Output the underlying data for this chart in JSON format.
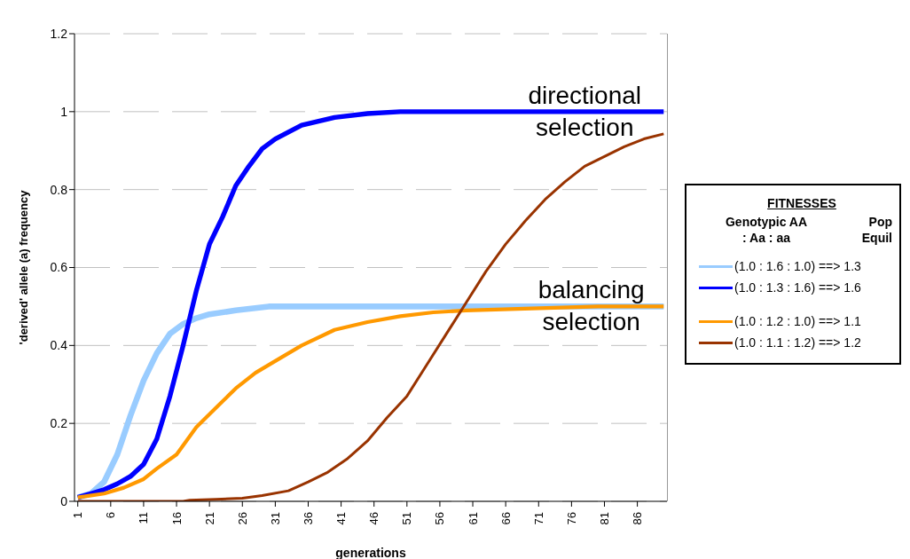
{
  "chart_data": {
    "type": "line",
    "xlabel": "generations",
    "ylabel": "'derived' allele (a) frequency",
    "legend_title": "FITNESSES",
    "xlim": [
      0.5,
      90.5
    ],
    "xticks": [
      1,
      6,
      11,
      16,
      21,
      26,
      31,
      36,
      41,
      46,
      51,
      56,
      61,
      66,
      71,
      76,
      81,
      86
    ],
    "ylim": [
      0,
      1.2
    ],
    "yticks": [
      0,
      0.2,
      0.4,
      0.6,
      0.8,
      1,
      1.2
    ],
    "grid": "y",
    "legend": "right",
    "annotations": [
      {
        "text": "directional selection",
        "x": 78,
        "y": 1.0
      },
      {
        "text": "balancing selection",
        "x": 79,
        "y": 0.5
      },
      "Genotypic AA : Aa : aa",
      "Pop Equil"
    ],
    "series": [
      {
        "name": "(1.0 : 1.6 : 1.0) ==> 1.3",
        "color": "#99ccff",
        "x": [
          1,
          3,
          5,
          7,
          9,
          11,
          13,
          15,
          17,
          19,
          21,
          25,
          30,
          90
        ],
        "values": [
          0.01,
          0.02,
          0.05,
          0.12,
          0.22,
          0.31,
          0.38,
          0.43,
          0.455,
          0.47,
          0.48,
          0.49,
          0.5,
          0.5
        ]
      },
      {
        "name": "(1.0 : 1.3 : 1.6) ==> 1.6",
        "color": "#0000ff",
        "x": [
          1,
          3,
          5,
          7,
          9,
          11,
          13,
          15,
          17,
          19,
          21,
          23,
          25,
          27,
          29,
          31,
          35,
          40,
          45,
          50,
          90
        ],
        "values": [
          0.01,
          0.02,
          0.03,
          0.045,
          0.064,
          0.095,
          0.16,
          0.27,
          0.4,
          0.54,
          0.66,
          0.73,
          0.81,
          0.86,
          0.905,
          0.93,
          0.965,
          0.985,
          0.995,
          1.0,
          1.0
        ]
      },
      {
        "name": "(1.0 : 1.2 : 1.0) ==> 1.1",
        "color": "#ff9900",
        "x": [
          1,
          5,
          8,
          11,
          13,
          16,
          19,
          22,
          25,
          28,
          31,
          35,
          40,
          45,
          50,
          55,
          60,
          70,
          80,
          90
        ],
        "values": [
          0.01,
          0.02,
          0.035,
          0.057,
          0.084,
          0.12,
          0.19,
          0.24,
          0.29,
          0.33,
          0.36,
          0.4,
          0.44,
          0.46,
          0.475,
          0.485,
          0.49,
          0.495,
          0.5,
          0.5
        ]
      },
      {
        "name": "(1.0 : 1.1 : 1.2) ==> 1.2",
        "color": "#993300",
        "x": [
          1,
          17,
          18,
          22,
          26,
          29,
          33,
          36,
          39,
          42,
          45,
          48,
          51,
          54,
          57,
          60,
          63,
          66,
          69,
          72,
          75,
          78,
          81,
          84,
          87,
          90
        ],
        "values": [
          0,
          0,
          0.003,
          0.005,
          0.008,
          0.015,
          0.027,
          0.05,
          0.075,
          0.11,
          0.155,
          0.215,
          0.27,
          0.35,
          0.43,
          0.51,
          0.59,
          0.66,
          0.72,
          0.775,
          0.82,
          0.86,
          0.885,
          0.91,
          0.93,
          0.943
        ]
      }
    ]
  }
}
